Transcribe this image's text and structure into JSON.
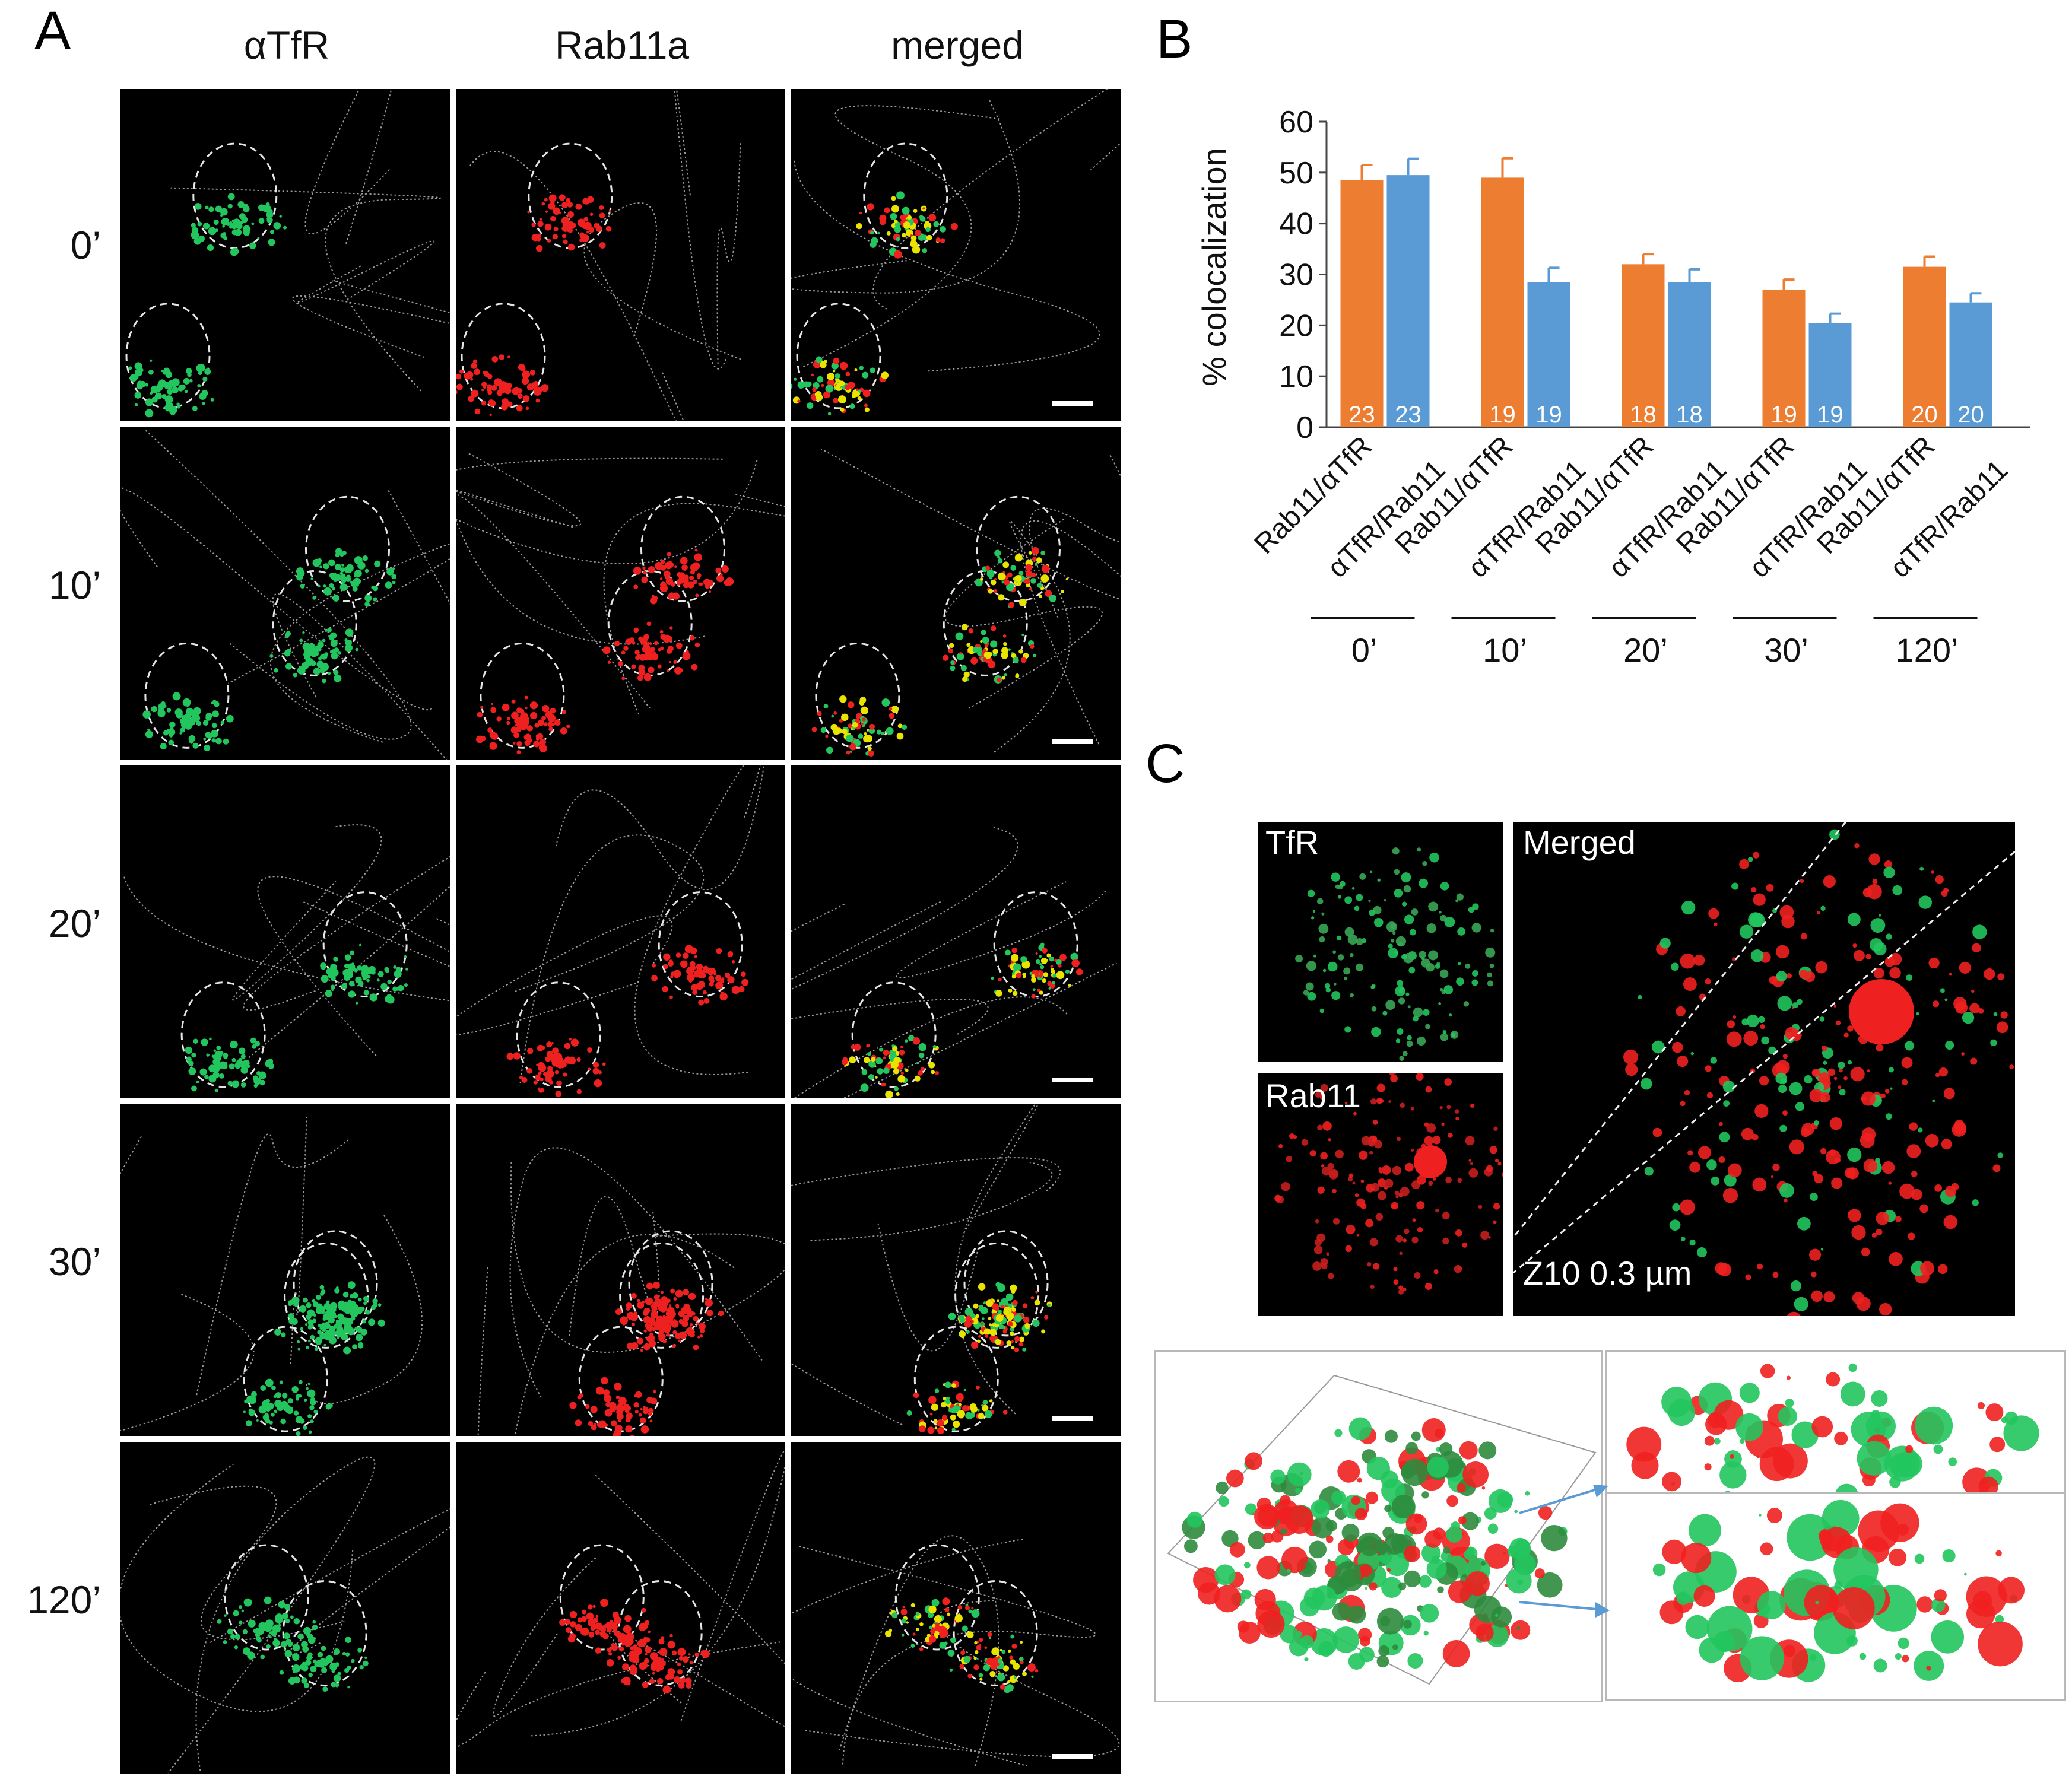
{
  "panels": {
    "a": {
      "letter": "A"
    },
    "b": {
      "letter": "B"
    },
    "c": {
      "letter": "C"
    }
  },
  "panel_a": {
    "columns": [
      "αTfR",
      "Rab11a",
      "merged"
    ],
    "rows": [
      "0’",
      "10’",
      "20’",
      "30’",
      "120’"
    ]
  },
  "panel_c": {
    "labels": {
      "tfr": "TfR",
      "rab11": "Rab11",
      "merged": "Merged",
      "z": "Z10 0.3 µm"
    }
  },
  "colors": {
    "rab11_bar": "#ED7D31",
    "tfr_bar": "#5B9BD5",
    "green_channel": "#22c55e",
    "red_channel": "#ef2020"
  },
  "chart_data": {
    "type": "bar",
    "ylabel": "% colocalization",
    "ylim": [
      0,
      60
    ],
    "yticks": [
      "0",
      "10",
      "20",
      "30",
      "40",
      "50",
      "60"
    ],
    "groups": [
      "0’",
      "10’",
      "20’",
      "30’",
      "120’"
    ],
    "category_labels": [
      "Rab11/αTfR",
      "αTfR/Rab11"
    ],
    "series": [
      {
        "name": "Rab11/αTfR",
        "values": [
          48.5,
          49,
          32,
          27,
          31.5
        ],
        "errors": [
          3,
          3.8,
          2,
          2,
          2
        ],
        "n": [
          "23",
          "19",
          "18",
          "19",
          "20"
        ]
      },
      {
        "name": "αTfR/Rab11",
        "values": [
          49.5,
          28.5,
          28.5,
          20.5,
          24.5
        ],
        "errors": [
          3.2,
          2.8,
          2.5,
          1.8,
          1.8
        ],
        "n": [
          "23",
          "19",
          "18",
          "19",
          "20"
        ]
      }
    ],
    "grid": false
  }
}
